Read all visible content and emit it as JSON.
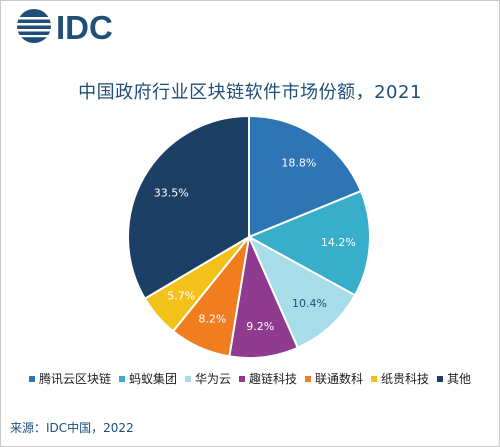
{
  "logo": {
    "text": "IDC"
  },
  "chart_data": {
    "type": "pie",
    "title": "中国政府行业区块链软件市场份额，2021",
    "labels": [
      "腾讯云区块链",
      "蚂蚁集团",
      "华为云",
      "趣链科技",
      "联通数科",
      "纸贵科技",
      "其他"
    ],
    "values": [
      18.8,
      14.2,
      10.4,
      9.2,
      8.2,
      5.7,
      33.5
    ],
    "value_labels": [
      "18.8%",
      "14.2%",
      "10.4%",
      "9.2%",
      "8.2%",
      "5.7%",
      "33.5%"
    ],
    "colors": [
      "#2E75B6",
      "#39AECB",
      "#A6DDE8",
      "#8E3A8E",
      "#F07D1E",
      "#F2C21B",
      "#1C3F66"
    ],
    "legend_position": "bottom"
  },
  "source": "来源：IDC中国，2022"
}
